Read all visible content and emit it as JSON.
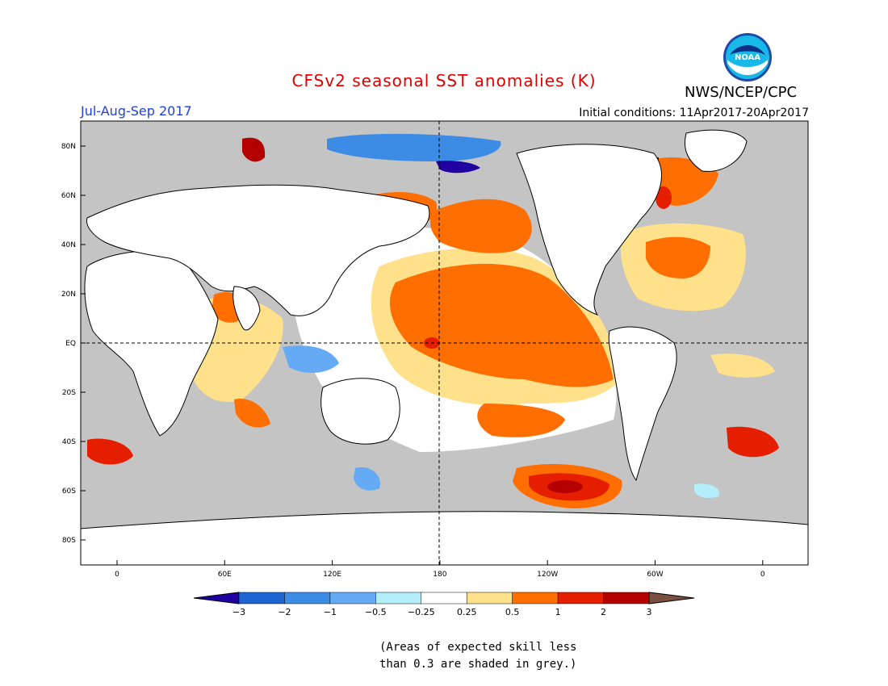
{
  "title": "CFSv2 seasonal SST anomalies (K)",
  "season": "Jul-Aug-Sep 2017",
  "initial_conditions": "Initial conditions: 11Apr2017-20Apr2017",
  "agency": "NWS/NCEP/CPC",
  "logo_text": "NOAA",
  "lat_labels": [
    "80N",
    "60N",
    "40N",
    "20N",
    "EQ",
    "20S",
    "40S",
    "60S",
    "80S"
  ],
  "lon_labels": [
    "0",
    "60E",
    "120E",
    "180",
    "120W",
    "60W",
    "0"
  ],
  "colorbar": {
    "labels": [
      "−3",
      "−2",
      "−1",
      "−0.5",
      "−0.25",
      "0.25",
      "0.5",
      "1",
      "2",
      "3"
    ],
    "colors": [
      "#2000a0",
      "#1e64d2",
      "#3c8ce6",
      "#64aaf5",
      "#b4eefa",
      "#ffffff",
      "#ffe18c",
      "#ff6e00",
      "#e61e00",
      "#b40000",
      "#7a5040"
    ]
  },
  "note_line1": "(Areas of expected skill less",
  "note_line2": "than 0.3 are shaded in grey.)",
  "colors": {
    "land": "#ffffff",
    "grey_skill": "#c4c4c4",
    "title": "#e00000",
    "season": "#2040e0"
  }
}
